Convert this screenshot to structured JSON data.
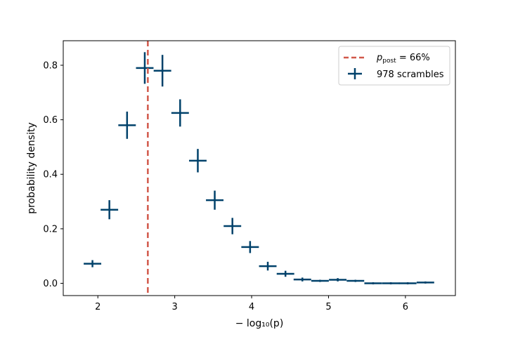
{
  "chart_data": {
    "type": "scatter",
    "xlabel": "− log₁₀(p)",
    "ylabel": "probability density",
    "xlim": [
      1.55,
      6.65
    ],
    "ylim": [
      -0.045,
      0.89
    ],
    "xticks": [
      2,
      3,
      4,
      5,
      6
    ],
    "yticks": [
      0.0,
      0.2,
      0.4,
      0.6,
      0.8
    ],
    "xtick_labels": [
      "2",
      "3",
      "4",
      "5",
      "6"
    ],
    "ytick_labels": [
      "0.0",
      "0.2",
      "0.4",
      "0.6",
      "0.8"
    ],
    "grid": false,
    "legend_position": "top-right",
    "vline": {
      "x": 2.65,
      "label": "p_post = 66%",
      "label_main": "p",
      "label_sub": "post",
      "label_rest": " = 66%",
      "color": "#d1584a",
      "style": "dashed"
    },
    "series": [
      {
        "name": "978 scrambles",
        "color": "#00416a",
        "marker": "errorbar-cross",
        "x": [
          1.93,
          2.15,
          2.38,
          2.61,
          2.84,
          3.07,
          3.3,
          3.52,
          3.75,
          3.98,
          4.21,
          4.44,
          4.66,
          4.89,
          5.12,
          5.35,
          5.58,
          5.81,
          6.03,
          6.26
        ],
        "y": [
          0.072,
          0.27,
          0.58,
          0.79,
          0.78,
          0.625,
          0.45,
          0.305,
          0.21,
          0.133,
          0.063,
          0.035,
          0.014,
          0.009,
          0.013,
          0.009,
          0.0,
          0.0,
          0.0,
          0.003
        ],
        "xerr": [
          0.114,
          0.114,
          0.114,
          0.114,
          0.114,
          0.114,
          0.114,
          0.114,
          0.114,
          0.114,
          0.114,
          0.114,
          0.114,
          0.114,
          0.114,
          0.114,
          0.114,
          0.114,
          0.114,
          0.114
        ],
        "yerr": [
          0.013,
          0.035,
          0.05,
          0.058,
          0.058,
          0.05,
          0.043,
          0.035,
          0.03,
          0.022,
          0.016,
          0.011,
          0.007,
          0.004,
          0.006,
          0.004,
          0.0,
          0.0,
          0.0,
          0.002
        ]
      }
    ]
  }
}
